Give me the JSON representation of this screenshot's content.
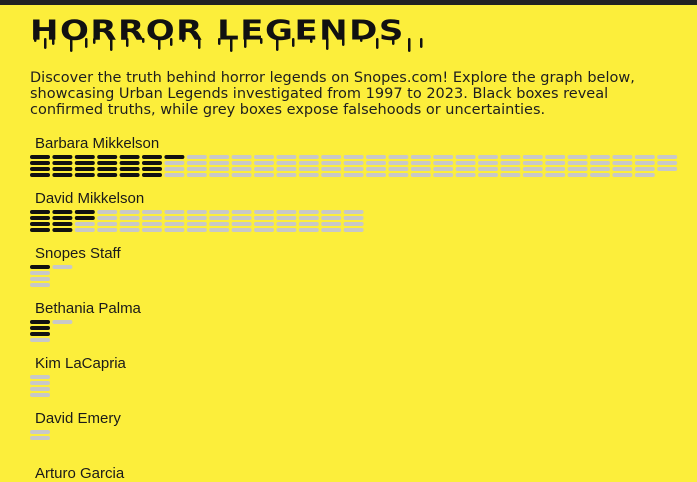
{
  "page": {
    "title": "HORROR LEGENDS",
    "intro": "Discover the truth behind horror legends on Snopes.com! Explore the graph below, showcasing Urban Legends investigated from 1997 to 2023. Black boxes reveal confirmed truths, while grey boxes expose falsehoods or uncertainties."
  },
  "colors": {
    "background": "#fcee3b",
    "true_box": "#111111",
    "false_box": "#c8c8c8",
    "title": "#111111"
  },
  "chart_data": {
    "type": "waffle",
    "title": "HORROR LEGENDS",
    "unit": "one box per urban legend",
    "legend": {
      "true": "Black boxes reveal confirmed truths",
      "false": "Grey boxes expose falsehoods or uncertainties"
    },
    "box_rows_per_column": 4,
    "series": [
      {
        "name": "Barbara Mikkelson",
        "true": 25,
        "false": 90
      },
      {
        "name": "David Mikkelson",
        "true": 10,
        "false": 50
      },
      {
        "name": "Snopes Staff",
        "true": 1,
        "false": 4
      },
      {
        "name": "Bethania Palma",
        "true": 3,
        "false": 2
      },
      {
        "name": "Kim LaCapria",
        "true": 0,
        "false": 4
      },
      {
        "name": "David Emery",
        "true": 0,
        "false": 2
      },
      {
        "name": "Arturo Garcia",
        "true": 0,
        "false": 0
      }
    ]
  }
}
